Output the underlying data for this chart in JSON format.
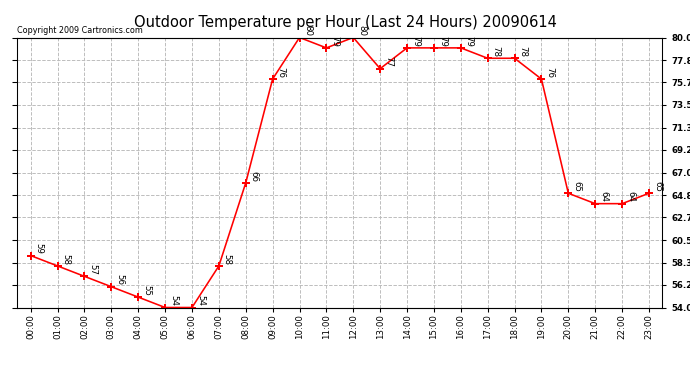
{
  "title": "Outdoor Temperature per Hour (Last 24 Hours) 20090614",
  "copyright": "Copyright 2009 Cartronics.com",
  "hours": [
    0,
    1,
    2,
    3,
    4,
    5,
    6,
    7,
    8,
    9,
    10,
    11,
    12,
    13,
    14,
    15,
    16,
    17,
    18,
    19,
    20,
    21,
    22,
    23
  ],
  "hour_labels": [
    "00:00",
    "01:00",
    "02:00",
    "03:00",
    "04:00",
    "05:00",
    "06:00",
    "07:00",
    "08:00",
    "09:00",
    "10:00",
    "11:00",
    "12:00",
    "13:00",
    "14:00",
    "15:00",
    "16:00",
    "17:00",
    "18:00",
    "19:00",
    "20:00",
    "21:00",
    "22:00",
    "23:00"
  ],
  "temps": [
    59,
    58,
    57,
    56,
    55,
    54,
    54,
    58,
    66,
    76,
    80,
    79,
    80,
    77,
    79,
    79,
    79,
    78,
    78,
    76,
    65,
    64,
    64,
    65
  ],
  "ylim_min": 54.0,
  "ylim_max": 80.0,
  "yticks": [
    54.0,
    56.2,
    58.3,
    60.5,
    62.7,
    64.8,
    67.0,
    69.2,
    71.3,
    73.5,
    75.7,
    77.8,
    80.0
  ],
  "line_color": "red",
  "marker": "+",
  "marker_size": 6,
  "marker_color": "red",
  "grid_color": "#bbbbbb",
  "grid_style": "--",
  "bg_color": "white",
  "title_fontsize": 11,
  "label_fontsize": 6.5,
  "annotation_fontsize": 6.5,
  "copyright_fontsize": 6
}
